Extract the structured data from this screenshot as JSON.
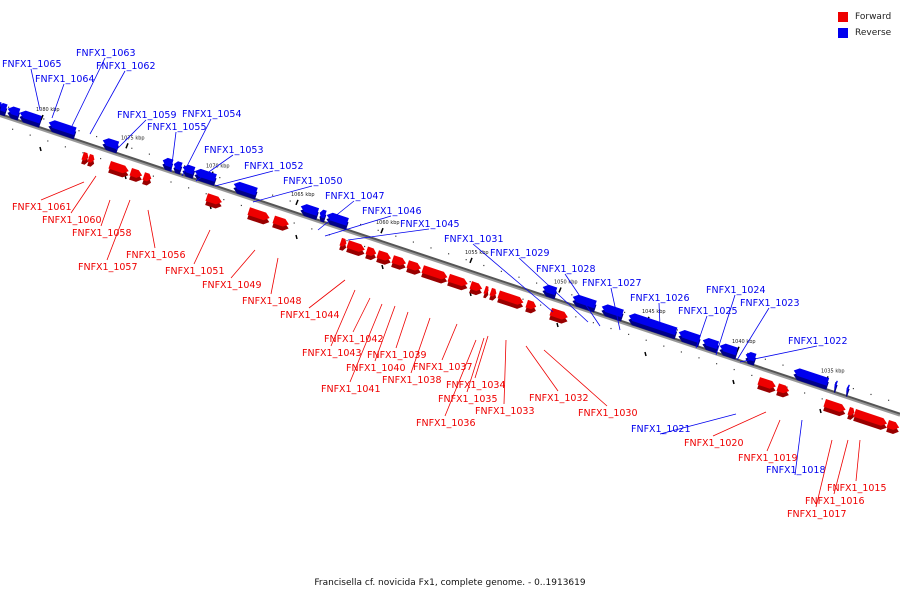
{
  "legend": {
    "forward_label": "Forward",
    "reverse_label": "Reverse",
    "forward_color": "#ee0000",
    "reverse_color": "#0000ee"
  },
  "caption": "Francisella cf. novicida Fx1, complete genome. - 0..1913619",
  "ticks": [
    {
      "label": "1080 kbp"
    },
    {
      "label": "1075 kbp"
    },
    {
      "label": "1070 kbp"
    },
    {
      "label": "1065 kbp"
    },
    {
      "label": "1060 kbp"
    },
    {
      "label": "1055 kbp"
    },
    {
      "label": "1050 kbp"
    },
    {
      "label": "1045 kbp"
    },
    {
      "label": "1040 kbp"
    },
    {
      "label": "1035 kbp"
    }
  ],
  "genes": [
    {
      "label": "FNFX1_1065",
      "strand": "reverse"
    },
    {
      "label": "FNFX1_1064",
      "strand": "reverse"
    },
    {
      "label": "FNFX1_1063",
      "strand": "reverse"
    },
    {
      "label": "FNFX1_1062",
      "strand": "reverse"
    },
    {
      "label": "FNFX1_1059",
      "strand": "reverse"
    },
    {
      "label": "FNFX1_1055",
      "strand": "reverse"
    },
    {
      "label": "FNFX1_1054",
      "strand": "reverse"
    },
    {
      "label": "FNFX1_1053",
      "strand": "reverse"
    },
    {
      "label": "FNFX1_1052",
      "strand": "reverse"
    },
    {
      "label": "FNFX1_1050",
      "strand": "reverse"
    },
    {
      "label": "FNFX1_1047",
      "strand": "reverse"
    },
    {
      "label": "FNFX1_1046",
      "strand": "reverse"
    },
    {
      "label": "FNFX1_1045",
      "strand": "reverse"
    },
    {
      "label": "FNFX1_1031",
      "strand": "reverse"
    },
    {
      "label": "FNFX1_1029",
      "strand": "reverse"
    },
    {
      "label": "FNFX1_1028",
      "strand": "reverse"
    },
    {
      "label": "FNFX1_1027",
      "strand": "reverse"
    },
    {
      "label": "FNFX1_1026",
      "strand": "reverse"
    },
    {
      "label": "FNFX1_1025",
      "strand": "reverse"
    },
    {
      "label": "FNFX1_1024",
      "strand": "reverse"
    },
    {
      "label": "FNFX1_1023",
      "strand": "reverse"
    },
    {
      "label": "FNFX1_1022",
      "strand": "reverse"
    },
    {
      "label": "FNFX1_1021",
      "strand": "reverse"
    },
    {
      "label": "FNFX1_1018",
      "strand": "reverse"
    },
    {
      "label": "FNFX1_1061",
      "strand": "forward"
    },
    {
      "label": "FNFX1_1060",
      "strand": "forward"
    },
    {
      "label": "FNFX1_1058",
      "strand": "forward"
    },
    {
      "label": "FNFX1_1057",
      "strand": "forward"
    },
    {
      "label": "FNFX1_1056",
      "strand": "forward"
    },
    {
      "label": "FNFX1_1051",
      "strand": "forward"
    },
    {
      "label": "FNFX1_1049",
      "strand": "forward"
    },
    {
      "label": "FNFX1_1048",
      "strand": "forward"
    },
    {
      "label": "FNFX1_1044",
      "strand": "forward"
    },
    {
      "label": "FNFX1_1043",
      "strand": "forward"
    },
    {
      "label": "FNFX1_1042",
      "strand": "forward"
    },
    {
      "label": "FNFX1_1041",
      "strand": "forward"
    },
    {
      "label": "FNFX1_1040",
      "strand": "forward"
    },
    {
      "label": "FNFX1_1039",
      "strand": "forward"
    },
    {
      "label": "FNFX1_1038",
      "strand": "forward"
    },
    {
      "label": "FNFX1_1037",
      "strand": "forward"
    },
    {
      "label": "FNFX1_1036",
      "strand": "forward"
    },
    {
      "label": "FNFX1_1035",
      "strand": "forward"
    },
    {
      "label": "FNFX1_1034",
      "strand": "forward"
    },
    {
      "label": "FNFX1_1033",
      "strand": "forward"
    },
    {
      "label": "FNFX1_1032",
      "strand": "forward"
    },
    {
      "label": "FNFX1_1030",
      "strand": "forward"
    },
    {
      "label": "FNFX1_1020",
      "strand": "forward"
    },
    {
      "label": "FNFX1_1019",
      "strand": "forward"
    },
    {
      "label": "FNFX1_1017",
      "strand": "forward"
    },
    {
      "label": "FNFX1_1016",
      "strand": "forward"
    },
    {
      "label": "FNFX1_1015",
      "strand": "forward"
    }
  ]
}
